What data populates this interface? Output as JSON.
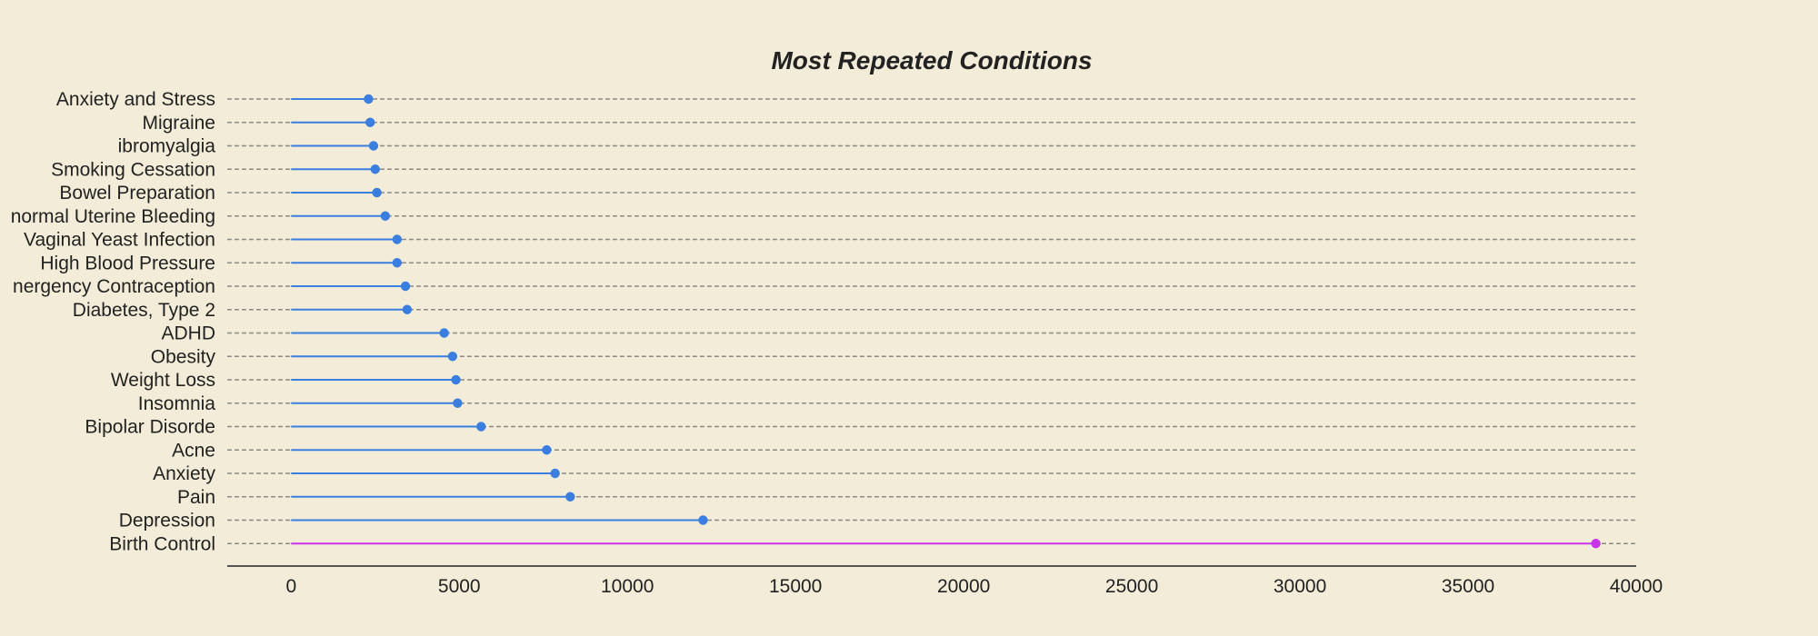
{
  "chart_data": {
    "type": "lollipop",
    "orientation": "horizontal",
    "title": "Most Repeated Conditions",
    "xlabel": "",
    "ylabel": "",
    "xlim": [
      -1900,
      40000
    ],
    "xticks": [
      0,
      5000,
      10000,
      15000,
      20000,
      25000,
      30000,
      35000,
      40000
    ],
    "grid": "horizontal-dashed",
    "categories": [
      "Anxiety and Stress",
      "Migraine",
      "ibromyalgia",
      "Smoking Cessation",
      "Bowel Preparation",
      "normal Uterine Bleeding",
      "Vaginal Yeast Infection",
      "High Blood Pressure",
      "nergency Contraception",
      "Diabetes, Type 2",
      "ADHD",
      "Obesity",
      "Weight Loss",
      "Insomnia",
      "Bipolar Disorde",
      "Acne",
      "Anxiety",
      "Pain",
      "Depression",
      "Birth Control"
    ],
    "values": [
      2300,
      2350,
      2450,
      2500,
      2550,
      2800,
      3150,
      3150,
      3400,
      3450,
      4550,
      4800,
      4900,
      4950,
      5650,
      7600,
      7850,
      8300,
      12250,
      38800
    ],
    "colors": {
      "default": "#3a7ee0",
      "highlight": "#c832e8",
      "highlight_category": "Birth Control"
    }
  }
}
